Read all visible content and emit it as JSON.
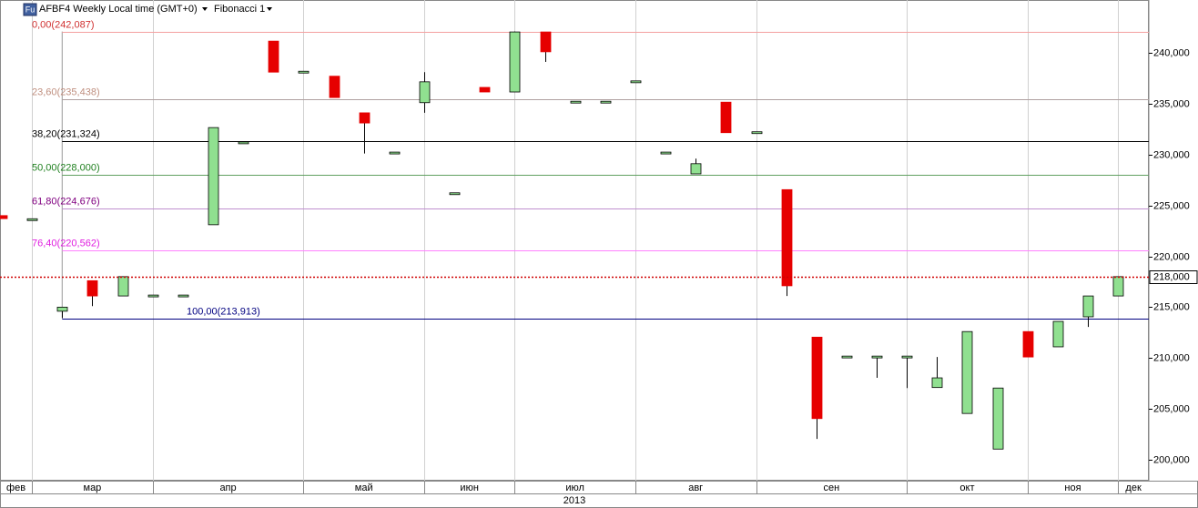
{
  "header": {
    "icon": "Fu",
    "symbol": "AFBF4 Weekly Local time (GMT+0)",
    "study": "Fibonacci 1"
  },
  "chart_data": {
    "type": "candlestick",
    "year": "2013",
    "months": [
      "фев",
      "мар",
      "апр",
      "май",
      "июн",
      "июл",
      "авг",
      "сен",
      "окт",
      "ноя",
      "дек"
    ],
    "open": [
      224000,
      223600,
      214600,
      217600,
      216100,
      216100,
      216100,
      223100,
      231150,
      241150,
      238100,
      237700,
      234100,
      230150,
      235100,
      226150,
      236600,
      236150,
      242050,
      235150,
      235150,
      237150,
      230150,
      228100,
      235150,
      232150,
      226550,
      212050,
      210100,
      210100,
      210100,
      207100,
      204550,
      201050,
      212600,
      211100,
      214050,
      216100
    ],
    "high": [
      224000,
      223600,
      215000,
      217600,
      218000,
      216100,
      216100,
      232650,
      231150,
      241150,
      238100,
      237700,
      234100,
      230150,
      238100,
      226150,
      236600,
      242087,
      242050,
      235150,
      235150,
      237150,
      230150,
      229600,
      235150,
      232150,
      226550,
      212050,
      210100,
      210100,
      210100,
      210100,
      212600,
      207050,
      212600,
      213600,
      216100,
      218000
    ],
    "low": [
      223700,
      223600,
      213913,
      215100,
      216100,
      216100,
      216100,
      223100,
      231150,
      238100,
      238100,
      235600,
      230100,
      230150,
      234100,
      226150,
      236150,
      236150,
      239100,
      235150,
      235150,
      237150,
      230150,
      228100,
      232150,
      232150,
      216100,
      202050,
      210100,
      208050,
      207050,
      207100,
      204550,
      201050,
      210100,
      211100,
      213050,
      216100
    ],
    "close": [
      223700,
      223600,
      215000,
      216100,
      218000,
      216100,
      216100,
      232650,
      231150,
      238100,
      238100,
      235600,
      233100,
      230150,
      237150,
      226150,
      236150,
      242050,
      240100,
      235150,
      235150,
      237150,
      230150,
      229100,
      232150,
      232150,
      217100,
      204050,
      210100,
      210100,
      210100,
      208050,
      212600,
      207050,
      210100,
      213600,
      216100,
      218000
    ],
    "up_color": "#90e090",
    "down_color": "#e60000",
    "ylim": [
      198480,
      245190
    ],
    "yticks": [
      {
        "value": 200000,
        "label": "200,000"
      },
      {
        "value": 205000,
        "label": "205,000"
      },
      {
        "value": 210000,
        "label": "210,000"
      },
      {
        "value": 215000,
        "label": "215,000"
      },
      {
        "value": 220000,
        "label": "220,000"
      },
      {
        "value": 225000,
        "label": "225,000"
      },
      {
        "value": 230000,
        "label": "230,000"
      },
      {
        "value": 235000,
        "label": "235,000"
      },
      {
        "value": 240000,
        "label": "240,000"
      }
    ],
    "last_price": {
      "value": 218000,
      "label": "218,000",
      "color": "#d00000"
    },
    "fib_levels": [
      {
        "value": 242087,
        "label": "0,00(242,087)",
        "color": "#f4a0a0",
        "text_color": "#d03030"
      },
      {
        "value": 235438,
        "label": "23,60(235,438)",
        "color": "#b0a0a0",
        "text_color": "#c09080"
      },
      {
        "value": 231324,
        "label": "38,20(231,324)",
        "color": "#000000",
        "text_color": "#000000"
      },
      {
        "value": 228000,
        "label": "50,00(228,000)",
        "color": "#60a060",
        "text_color": "#208020"
      },
      {
        "value": 224676,
        "label": "61,80(224,676)",
        "color": "#c090d0",
        "text_color": "#800080"
      },
      {
        "value": 220562,
        "label": "76,40(220,562)",
        "color": "#ff80ff",
        "text_color": "#e020e0"
      },
      {
        "value": 213913,
        "label": "100,00(213,913)",
        "color": "#000080",
        "text_color": "#000080"
      }
    ]
  }
}
